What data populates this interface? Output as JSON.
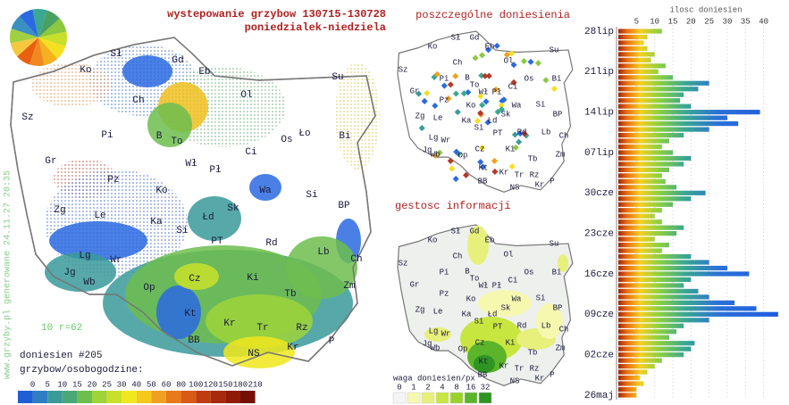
{
  "header": {
    "title": "wystepowanie grzybow 130715-130728",
    "subtitle": "poniedzialek-niedziela"
  },
  "main_map": {
    "labels": [
      "Sł",
      "Gd",
      "Ko",
      "Eb",
      "Su",
      "Ch",
      "Ol",
      "Sz",
      "Pi",
      "B",
      "To",
      "Os",
      "Ło",
      "Bi",
      "Ci",
      "Gr",
      "Wł",
      "Pł",
      "Pz",
      "Ko",
      "Wa",
      "Si",
      "Zg",
      "Le",
      "Ka",
      "Łd",
      "Sk",
      "BP",
      "Si",
      "PT",
      "Rd",
      "Lg",
      "Wr",
      "Lb",
      "Ch",
      "Jg",
      "Wb",
      "Cz",
      "Ki",
      "Zm",
      "Op",
      "Tb",
      "Kt",
      "Kr",
      "Tr",
      "Rz",
      "BB",
      "Kr",
      "P",
      "NS"
    ],
    "report_count": "doniesien #205",
    "scale_label": "10 r=62"
  },
  "credit": "www.grzyby.pl generowane 24.11.27 20:35",
  "density_legend": {
    "title": "grzybow/osobogodzine:",
    "ticks": [
      0,
      5,
      10,
      15,
      20,
      25,
      30,
      40,
      50,
      60,
      80,
      100,
      120,
      150,
      180,
      210
    ],
    "colors": [
      "#1f5fd6",
      "#2f7ec4",
      "#3a9a9a",
      "#4aa878",
      "#6dbd4f",
      "#9ed33a",
      "#c8e02a",
      "#f0e81c",
      "#f5c81a",
      "#f0a020",
      "#e87a1a",
      "#d85a14",
      "#c03c10",
      "#a82a0c",
      "#901c08",
      "#741008"
    ]
  },
  "reports_map": {
    "title": "poszczególne doniesienia",
    "labels": [
      "Ko",
      "Sł",
      "Gd",
      "Eb",
      "Su",
      "Ch",
      "Ol",
      "Sz",
      "Pi",
      "B",
      "To",
      "Os",
      "Bi",
      "Ci",
      "Gr",
      "Wł",
      "Pł",
      "Pz",
      "Ko",
      "Wa",
      "Si",
      "Zg",
      "Le",
      "Ka",
      "Łd",
      "Sk",
      "BP",
      "Si",
      "PT",
      "Rd",
      "Lg",
      "Wr",
      "Lb",
      "Ch",
      "Jg",
      "Wb",
      "Cz",
      "Ki",
      "Zm",
      "Op",
      "Tb",
      "Kt",
      "Kr",
      "Tr",
      "Rz",
      "BB",
      "Kr",
      "NS",
      "P"
    ]
  },
  "info_map": {
    "title": "gestosc informacji",
    "labels": [
      "Ko",
      "Sł",
      "Gd",
      "Eb",
      "Su",
      "Ch",
      "Ol",
      "Sz",
      "Pi",
      "B",
      "To",
      "Os",
      "Bi",
      "Ci",
      "Gr",
      "Wł",
      "Pł",
      "Pz",
      "Ko",
      "Wa",
      "Si",
      "Zg",
      "Le",
      "Ka",
      "Łd",
      "Sk",
      "BP",
      "Si",
      "PT",
      "Rd",
      "Lg",
      "Wr",
      "Lb",
      "Ch",
      "Jg",
      "Wb",
      "Cz",
      "Ki",
      "Zm",
      "Op",
      "Tb",
      "Kt",
      "Kr",
      "Tr",
      "Rz",
      "BB",
      "Kr",
      "NS",
      "P"
    ]
  },
  "weight_legend": {
    "title": "waga doniesien/px",
    "ticks": [
      0,
      1,
      2,
      4,
      8,
      16,
      32
    ],
    "colors": [
      "#f4f4f4",
      "#f6f8b0",
      "#e6f07a",
      "#c8e640",
      "#9ad22c",
      "#5cb42a",
      "#2e9422"
    ]
  },
  "chart_data": {
    "type": "bar",
    "orientation": "horizontal",
    "title": "ilosc doniesien",
    "categories": [
      "28lip",
      null,
      null,
      null,
      null,
      null,
      null,
      "21lip",
      null,
      null,
      null,
      null,
      null,
      null,
      "14lip",
      null,
      null,
      null,
      null,
      null,
      null,
      "07lip",
      null,
      null,
      null,
      null,
      null,
      null,
      "30cze",
      null,
      null,
      null,
      null,
      null,
      null,
      "23cze",
      null,
      null,
      null,
      null,
      null,
      null,
      "16cze",
      null,
      null,
      null,
      null,
      null,
      null,
      "09cze",
      null,
      null,
      null,
      null,
      null,
      null,
      "02cze",
      null,
      null,
      null,
      null,
      null,
      null,
      "26maj"
    ],
    "values": [
      12,
      8,
      7,
      8,
      10,
      9,
      13,
      11,
      15,
      25,
      22,
      18,
      17,
      20,
      39,
      30,
      33,
      25,
      18,
      14,
      12,
      15,
      20,
      18,
      14,
      12,
      13,
      16,
      24,
      20,
      15,
      12,
      10,
      12,
      18,
      16,
      10,
      14,
      12,
      20,
      25,
      30,
      36,
      20,
      18,
      22,
      25,
      32,
      38,
      44,
      25,
      18,
      16,
      14,
      21,
      20,
      18,
      12,
      10,
      8,
      6,
      7,
      5,
      5
    ],
    "xlim": [
      0,
      46
    ],
    "xticks": [
      5,
      10,
      15,
      20,
      25,
      30,
      35,
      40
    ]
  }
}
